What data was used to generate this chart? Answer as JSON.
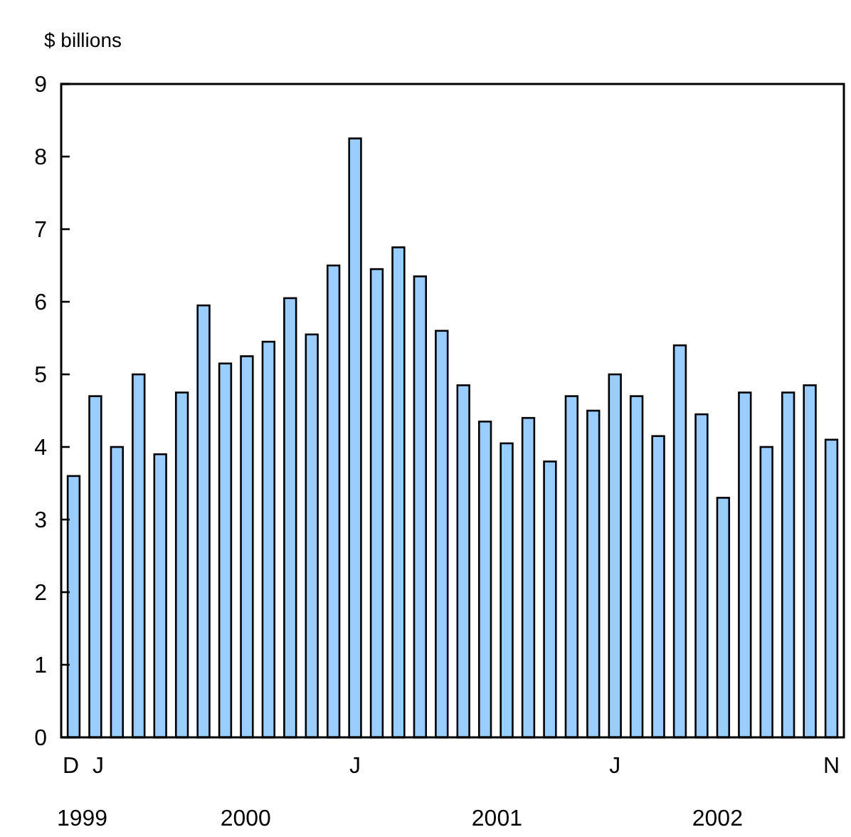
{
  "chart_data": {
    "type": "bar",
    "ylabel": "$ billions",
    "categories": [
      "D",
      "J",
      null,
      null,
      null,
      null,
      null,
      null,
      null,
      null,
      null,
      null,
      null,
      "J",
      null,
      null,
      null,
      null,
      null,
      null,
      null,
      null,
      null,
      null,
      null,
      "J",
      null,
      null,
      null,
      null,
      null,
      null,
      null,
      null,
      null,
      "N"
    ],
    "values": [
      3.6,
      4.7,
      4.0,
      5.0,
      3.9,
      4.75,
      5.95,
      5.15,
      5.25,
      5.45,
      6.05,
      5.55,
      6.5,
      8.25,
      6.45,
      6.75,
      6.35,
      5.6,
      4.85,
      4.35,
      4.05,
      4.4,
      3.8,
      4.7,
      4.5,
      5.0,
      4.7,
      4.15,
      5.4,
      4.45,
      3.3,
      4.75,
      4.0,
      4.75,
      4.85,
      4.1
    ],
    "color": "#99ccff",
    "ylim": [
      0,
      9
    ],
    "yticks": [
      0,
      1,
      2,
      3,
      4,
      5,
      6,
      7,
      8,
      9
    ],
    "grid": false,
    "annotations": [
      "1999",
      "2000",
      "2001",
      "2002"
    ]
  }
}
